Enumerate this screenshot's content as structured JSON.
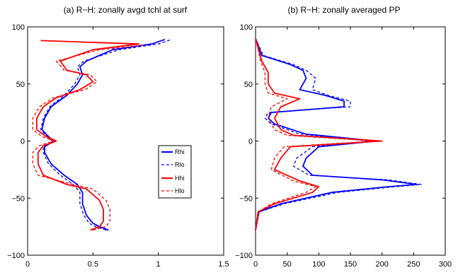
{
  "chart_data": [
    {
      "type": "line",
      "title": "(a) R−H: zonally avgd tchl at surf",
      "xlim": [
        0,
        1.5
      ],
      "ylim": [
        -100,
        100
      ],
      "xticks": [
        "0",
        "0.5",
        "1",
        "1.5"
      ],
      "yticks": [
        "−100",
        "−50",
        "0",
        "50",
        "100"
      ],
      "legend": {
        "placement": "right-center",
        "entries": [
          "Rhi",
          "Rlo",
          "Hhi",
          "Hlo"
        ]
      },
      "series": [
        {
          "name": "Rhi",
          "color": "#0000ff",
          "dash": "solid",
          "points": [
            [
              0.62,
              -78
            ],
            [
              0.55,
              -75
            ],
            [
              0.5,
              -72
            ],
            [
              0.45,
              -65
            ],
            [
              0.42,
              -55
            ],
            [
              0.42,
              -45
            ],
            [
              0.38,
              -38
            ],
            [
              0.28,
              -30
            ],
            [
              0.18,
              -20
            ],
            [
              0.13,
              -10
            ],
            [
              0.13,
              -5
            ],
            [
              0.2,
              0
            ],
            [
              0.15,
              5
            ],
            [
              0.11,
              10
            ],
            [
              0.13,
              20
            ],
            [
              0.18,
              30
            ],
            [
              0.3,
              40
            ],
            [
              0.38,
              50
            ],
            [
              0.42,
              58
            ],
            [
              0.4,
              65
            ],
            [
              0.45,
              70
            ],
            [
              0.65,
              80
            ],
            [
              0.95,
              85
            ],
            [
              1.05,
              89
            ]
          ]
        },
        {
          "name": "Rlo",
          "color": "#0000ff",
          "dash": "dashed",
          "points": [
            [
              0.6,
              -78
            ],
            [
              0.52,
              -75
            ],
            [
              0.47,
              -72
            ],
            [
              0.43,
              -65
            ],
            [
              0.4,
              -55
            ],
            [
              0.4,
              -45
            ],
            [
              0.35,
              -38
            ],
            [
              0.25,
              -30
            ],
            [
              0.16,
              -20
            ],
            [
              0.12,
              -10
            ],
            [
              0.12,
              -5
            ],
            [
              0.19,
              0
            ],
            [
              0.14,
              5
            ],
            [
              0.1,
              10
            ],
            [
              0.12,
              20
            ],
            [
              0.17,
              30
            ],
            [
              0.28,
              40
            ],
            [
              0.36,
              50
            ],
            [
              0.4,
              58
            ],
            [
              0.38,
              65
            ],
            [
              0.43,
              70
            ],
            [
              0.7,
              80
            ],
            [
              1.0,
              85
            ],
            [
              1.1,
              89
            ]
          ]
        },
        {
          "name": "Hhi",
          "color": "#ff0000",
          "dash": "solid",
          "points": [
            [
              0.48,
              -78
            ],
            [
              0.55,
              -75
            ],
            [
              0.58,
              -70
            ],
            [
              0.58,
              -60
            ],
            [
              0.55,
              -52
            ],
            [
              0.45,
              -42
            ],
            [
              0.3,
              -38
            ],
            [
              0.12,
              -30
            ],
            [
              0.08,
              -20
            ],
            [
              0.08,
              -10
            ],
            [
              0.12,
              -4
            ],
            [
              0.22,
              0
            ],
            [
              0.14,
              4
            ],
            [
              0.07,
              10
            ],
            [
              0.07,
              20
            ],
            [
              0.12,
              30
            ],
            [
              0.22,
              38
            ],
            [
              0.4,
              45
            ],
            [
              0.5,
              52
            ],
            [
              0.45,
              58
            ],
            [
              0.3,
              62
            ],
            [
              0.25,
              70
            ],
            [
              0.5,
              80
            ],
            [
              0.85,
              85
            ],
            [
              0.1,
              88
            ]
          ]
        },
        {
          "name": "Hlo",
          "color": "#ff0000",
          "dash": "dashed",
          "points": [
            [
              0.5,
              -78
            ],
            [
              0.6,
              -75
            ],
            [
              0.63,
              -70
            ],
            [
              0.63,
              -60
            ],
            [
              0.6,
              -52
            ],
            [
              0.5,
              -42
            ],
            [
              0.35,
              -38
            ],
            [
              0.08,
              -30
            ],
            [
              0.04,
              -20
            ],
            [
              0.04,
              -10
            ],
            [
              0.09,
              -4
            ],
            [
              0.2,
              0
            ],
            [
              0.11,
              4
            ],
            [
              0.04,
              10
            ],
            [
              0.04,
              20
            ],
            [
              0.09,
              30
            ],
            [
              0.2,
              38
            ],
            [
              0.44,
              45
            ],
            [
              0.53,
              52
            ],
            [
              0.48,
              58
            ],
            [
              0.28,
              62
            ],
            [
              0.22,
              70
            ],
            [
              0.55,
              80
            ],
            [
              0.9,
              84
            ]
          ]
        }
      ]
    },
    {
      "type": "line",
      "title": "(b) R−H: zonally averaged PP",
      "xlim": [
        0,
        300
      ],
      "ylim": [
        -100,
        100
      ],
      "xticks": [
        "0",
        "50",
        "100",
        "150",
        "200",
        "250",
        "300"
      ],
      "yticks": [
        "−100",
        "−50",
        "0",
        "50",
        "100"
      ],
      "series": [
        {
          "name": "Rhi",
          "color": "#0000ff",
          "dash": "solid",
          "points": [
            [
              0,
              -78
            ],
            [
              5,
              -62
            ],
            [
              40,
              -55
            ],
            [
              120,
              -45
            ],
            [
              210,
              -40
            ],
            [
              255,
              -38
            ],
            [
              200,
              -34
            ],
            [
              90,
              -30
            ],
            [
              75,
              -22
            ],
            [
              80,
              -15
            ],
            [
              100,
              -5
            ],
            [
              190,
              0
            ],
            [
              100,
              5
            ],
            [
              80,
              6
            ],
            [
              30,
              15
            ],
            [
              20,
              20
            ],
            [
              25,
              25
            ],
            [
              140,
              30
            ],
            [
              140,
              35
            ],
            [
              110,
              40
            ],
            [
              70,
              45
            ],
            [
              80,
              55
            ],
            [
              75,
              62
            ],
            [
              55,
              67
            ],
            [
              10,
              75
            ],
            [
              0,
              90
            ]
          ]
        },
        {
          "name": "Rlo",
          "color": "#0000ff",
          "dash": "dashed",
          "points": [
            [
              0,
              -78
            ],
            [
              6,
              -62
            ],
            [
              45,
              -55
            ],
            [
              130,
              -45
            ],
            [
              220,
              -40
            ],
            [
              262,
              -38
            ],
            [
              210,
              -34
            ],
            [
              85,
              -30
            ],
            [
              60,
              -22
            ],
            [
              65,
              -15
            ],
            [
              90,
              -5
            ],
            [
              180,
              0
            ],
            [
              90,
              5
            ],
            [
              70,
              6
            ],
            [
              25,
              15
            ],
            [
              15,
              20
            ],
            [
              20,
              25
            ],
            [
              150,
              30
            ],
            [
              150,
              35
            ],
            [
              115,
              40
            ],
            [
              90,
              45
            ],
            [
              95,
              55
            ],
            [
              80,
              62
            ],
            [
              60,
              67
            ],
            [
              12,
              75
            ],
            [
              0,
              90
            ]
          ]
        },
        {
          "name": "Hhi",
          "color": "#ff0000",
          "dash": "solid",
          "points": [
            [
              0,
              -78
            ],
            [
              4,
              -62
            ],
            [
              30,
              -55
            ],
            [
              90,
              -45
            ],
            [
              100,
              -40
            ],
            [
              70,
              -35
            ],
            [
              30,
              -25
            ],
            [
              40,
              -15
            ],
            [
              55,
              -5
            ],
            [
              200,
              0
            ],
            [
              60,
              5
            ],
            [
              40,
              10
            ],
            [
              30,
              20
            ],
            [
              40,
              30
            ],
            [
              70,
              37
            ],
            [
              30,
              42
            ],
            [
              20,
              50
            ],
            [
              20,
              60
            ],
            [
              10,
              70
            ],
            [
              0,
              90
            ]
          ]
        },
        {
          "name": "Hlo",
          "color": "#ff0000",
          "dash": "dashed",
          "points": [
            [
              0,
              -78
            ],
            [
              5,
              -62
            ],
            [
              25,
              -55
            ],
            [
              80,
              -45
            ],
            [
              95,
              -40
            ],
            [
              60,
              -35
            ],
            [
              25,
              -25
            ],
            [
              30,
              -15
            ],
            [
              45,
              -5
            ],
            [
              190,
              0
            ],
            [
              50,
              5
            ],
            [
              30,
              10
            ],
            [
              20,
              20
            ],
            [
              25,
              30
            ],
            [
              50,
              37
            ],
            [
              20,
              42
            ],
            [
              15,
              50
            ],
            [
              15,
              60
            ],
            [
              8,
              70
            ],
            [
              0,
              90
            ]
          ]
        }
      ]
    }
  ]
}
